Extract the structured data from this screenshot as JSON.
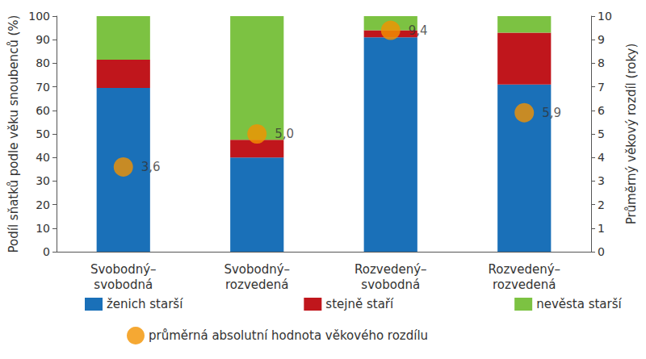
{
  "chart_data": {
    "type": "bar",
    "stacked": true,
    "grid": false,
    "legend": "bottom",
    "categories": [
      "Svobodný–\nsvobodná",
      "Svobodný–\nrozvedená",
      "Rozvedený–\nsvobodná",
      "Rozvedený–\nrozvedená"
    ],
    "y_label": "Podíl sňatků podle věku snoubenců (%)",
    "y2_label": "Průměrný věkový rozdíl (roky)",
    "ylim": [
      0,
      100
    ],
    "yticks": [
      0,
      10,
      20,
      30,
      40,
      50,
      60,
      70,
      80,
      90,
      100
    ],
    "y2lim": [
      0,
      10
    ],
    "y2ticks": [
      0,
      1,
      2,
      3,
      4,
      5,
      6,
      7,
      8,
      9,
      10
    ],
    "series": [
      {
        "name": "ženich starší",
        "type": "bar",
        "color": "#1a70b8",
        "values": [
          69.5,
          40,
          91,
          71
        ]
      },
      {
        "name": "stejně staří",
        "type": "bar",
        "color": "#c0161c",
        "values": [
          12,
          7.5,
          3,
          22
        ]
      },
      {
        "name": "nevěsta starší",
        "type": "bar",
        "color": "#7cc242",
        "values": [
          18.5,
          52.5,
          6,
          7
        ]
      },
      {
        "name": "průměrná absolutní hodnota věkového rozdílu",
        "type": "scatter",
        "axis": "y2",
        "marker": "circle",
        "color": "#f39200",
        "data_labels": true,
        "values": [
          3.6,
          5.0,
          9.4,
          5.9
        ],
        "value_labels": [
          "3,6",
          "5,0",
          "9,4",
          "5,9"
        ]
      }
    ]
  }
}
